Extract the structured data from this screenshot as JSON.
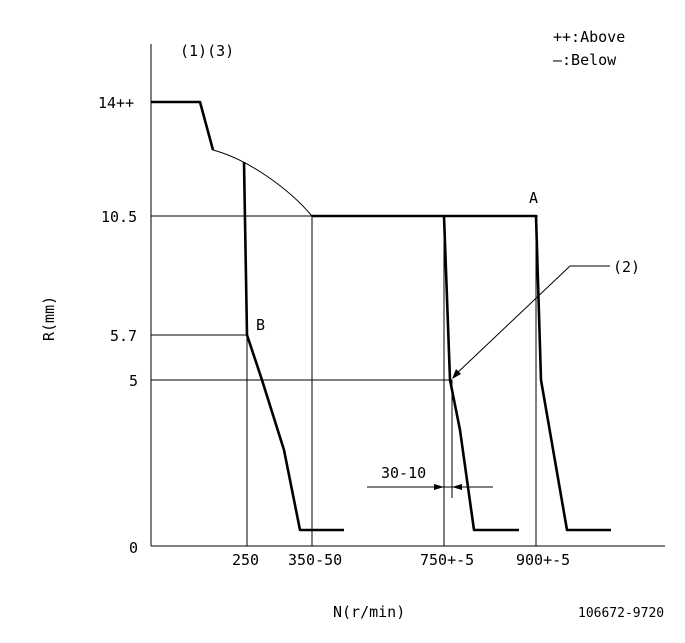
{
  "header": {
    "notes": "(1)(3)",
    "legend_above": "++:Above",
    "legend_below": "—:Below"
  },
  "axes": {
    "ylabel": "R(mm)",
    "xlabel": "N(r/min)",
    "y_ticks": [
      "14++",
      "10.5",
      "5.7",
      "5",
      "0"
    ],
    "x_ticks": [
      "250",
      "350-50",
      "750+-5",
      "900+-5"
    ]
  },
  "points": {
    "a": "A",
    "b": "B",
    "callout": "(2)"
  },
  "dimension": {
    "label": "30-10"
  },
  "footer": {
    "part_number": "106672-9720"
  }
}
